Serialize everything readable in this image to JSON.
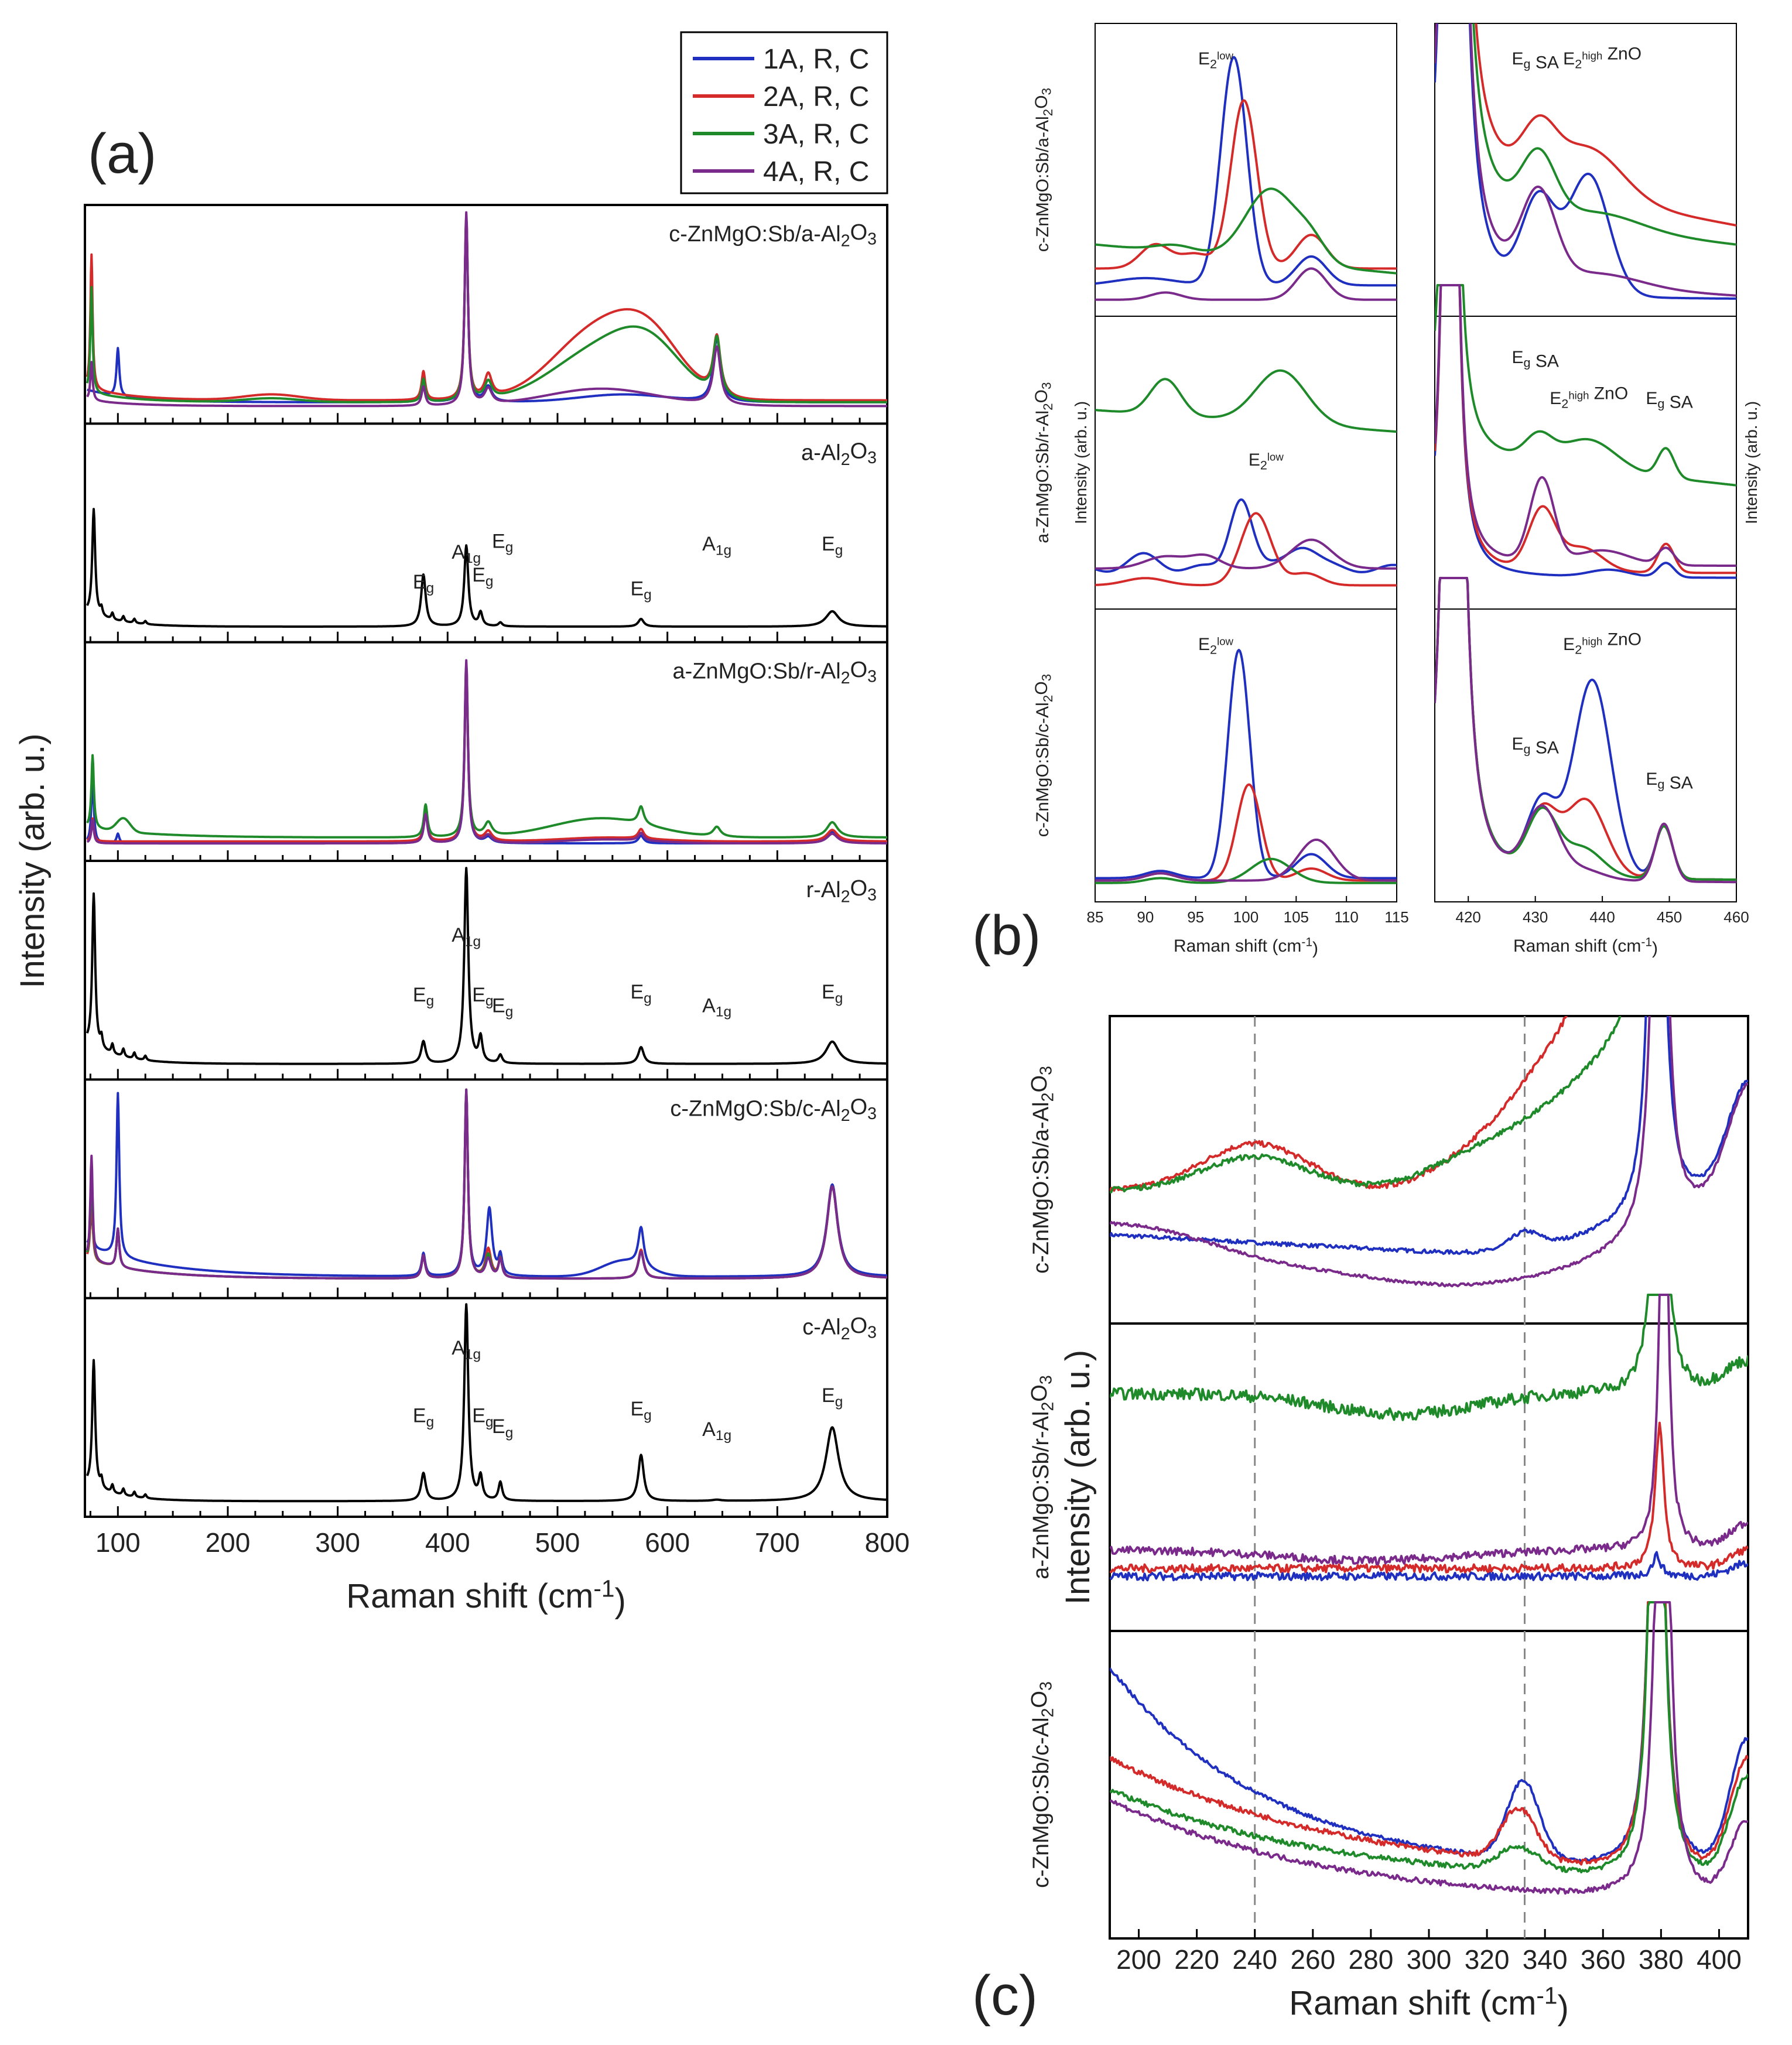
{
  "chart_data": [
    {
      "panel": "(a)",
      "type": "line",
      "xlabel": "Raman shift (cm-1)",
      "ylabel": "Intensity (arb. u.)",
      "xlim": [
        70,
        800
      ],
      "xticks": [
        "100",
        "200",
        "300",
        "400",
        "500",
        "600",
        "700",
        "800"
      ],
      "legend": {
        "position": "top-right",
        "entries": [
          {
            "name": "1A, R, C",
            "color": "#1f2fbf"
          },
          {
            "name": "2A, R, C",
            "color": "#d42a2a"
          },
          {
            "name": "3A, R, C",
            "color": "#1f8a2a"
          },
          {
            "name": "4A, R, C",
            "color": "#7a2a8a"
          }
        ]
      },
      "subpanels": [
        {
          "label": "c-ZnMgO:Sb/a-Al2O3",
          "kind": "film",
          "annotations": []
        },
        {
          "label": "a-Al2O3",
          "kind": "substrate",
          "annotations": [
            {
              "x": 378,
              "text": "Eg"
            },
            {
              "x": 417,
              "text": "A1g"
            },
            {
              "x": 432,
              "text": "Eg"
            },
            {
              "x": 450,
              "text": "Eg"
            },
            {
              "x": 576,
              "text": "Eg"
            },
            {
              "x": 645,
              "text": "A1g"
            },
            {
              "x": 750,
              "text": "Eg"
            }
          ]
        },
        {
          "label": "a-ZnMgO:Sb/r-Al2O3",
          "kind": "film",
          "annotations": []
        },
        {
          "label": "r-Al2O3",
          "kind": "substrate",
          "annotations": [
            {
              "x": 378,
              "text": "Eg"
            },
            {
              "x": 417,
              "text": "A1g"
            },
            {
              "x": 432,
              "text": "Eg"
            },
            {
              "x": 450,
              "text": "Eg"
            },
            {
              "x": 576,
              "text": "Eg"
            },
            {
              "x": 645,
              "text": "A1g"
            },
            {
              "x": 750,
              "text": "Eg"
            }
          ]
        },
        {
          "label": "c-ZnMgO:Sb/c-Al2O3",
          "kind": "film",
          "annotations": []
        },
        {
          "label": "c-Al2O3",
          "kind": "substrate",
          "annotations": [
            {
              "x": 378,
              "text": "Eg"
            },
            {
              "x": 417,
              "text": "A1g"
            },
            {
              "x": 432,
              "text": "Eg"
            },
            {
              "x": 450,
              "text": "Eg"
            },
            {
              "x": 576,
              "text": "Eg"
            },
            {
              "x": 645,
              "text": "A1g"
            },
            {
              "x": 750,
              "text": "Eg"
            }
          ]
        }
      ],
      "peaks_cm1": [
        378,
        417,
        430,
        448,
        576,
        645,
        750
      ]
    },
    {
      "panel": "(b)",
      "type": "line",
      "xlabel": "Raman shift (cm-1)",
      "ylabel": "Intensity (arb. u.)",
      "left": {
        "xlim": [
          85,
          115
        ],
        "xticks": [
          "85",
          "90",
          "95",
          "100",
          "105",
          "110",
          "115"
        ]
      },
      "right": {
        "xlim": [
          415,
          460
        ],
        "xticks": [
          "420",
          "430",
          "440",
          "450",
          "460"
        ]
      },
      "rows": [
        {
          "label": "c-ZnMgO:Sb/a-Al2O3",
          "left_annotations": [
            {
              "x": 97,
              "text": "E2low"
            }
          ],
          "right_annotations": [
            {
              "x": 430,
              "text": "Eg SA"
            },
            {
              "x": 440,
              "text": "E2high ZnO"
            }
          ]
        },
        {
          "label": "a-ZnMgO:Sb/r-Al2O3",
          "left_annotations": [
            {
              "x": 102,
              "text": "E2low"
            }
          ],
          "right_annotations": [
            {
              "x": 430,
              "text": "Eg SA"
            },
            {
              "x": 438,
              "text": "E2high ZnO"
            },
            {
              "x": 450,
              "text": "Eg SA"
            }
          ]
        },
        {
          "label": "c-ZnMgO:Sb/c-Al2O3",
          "left_annotations": [
            {
              "x": 97,
              "text": "E2low"
            }
          ],
          "right_annotations": [
            {
              "x": 430,
              "text": "Eg SA"
            },
            {
              "x": 440,
              "text": "E2high ZnO"
            },
            {
              "x": 450,
              "text": "Eg SA"
            }
          ]
        }
      ]
    },
    {
      "panel": "(c)",
      "type": "line",
      "xlabel": "Raman shift (cm-1)",
      "ylabel": "Intensity (arb. u.)",
      "xlim": [
        190,
        410
      ],
      "xticks": [
        "200",
        "220",
        "240",
        "260",
        "280",
        "300",
        "320",
        "340",
        "360",
        "380",
        "400"
      ],
      "dashed_lines_x": [
        240,
        333
      ],
      "rows": [
        {
          "label": "c-ZnMgO:Sb/a-Al2O3"
        },
        {
          "label": "a-ZnMgO:Sb/r-Al2O3"
        },
        {
          "label": "c-ZnMgO:Sb/c-Al2O3"
        }
      ]
    }
  ],
  "text": {
    "panel_a": "(a)",
    "panel_b": "(b)",
    "panel_c": "(c)",
    "xlabel_main": "Raman shift (cm",
    "xlabel_sup": "-1",
    "xlabel_close": ")",
    "ylabel": "Intensity (arb. u.)"
  }
}
